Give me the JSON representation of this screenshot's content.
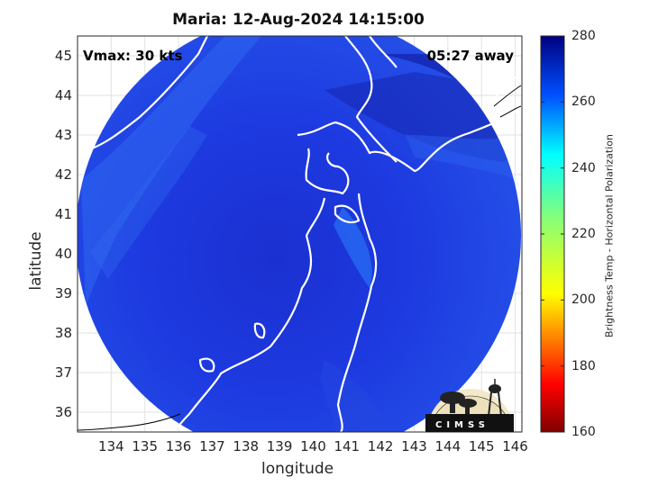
{
  "title": "Maria: 12-Aug-2024 14:15:00",
  "vmax_label": "Vmax: 30 kts",
  "time_away_label": "05:27 away",
  "xlabel": "longitude",
  "ylabel": "latitude",
  "x_ticks": [
    "134",
    "135",
    "136",
    "137",
    "138",
    "139",
    "140",
    "141",
    "142",
    "143",
    "144",
    "145",
    "146"
  ],
  "y_ticks": [
    "45",
    "44",
    "43",
    "42",
    "41",
    "40",
    "39",
    "38",
    "37",
    "36"
  ],
  "colorbar": {
    "label": "Brightness Temp - Horizontal Polarization",
    "ticks": [
      "280",
      "260",
      "240",
      "220",
      "200",
      "180",
      "160"
    ],
    "range": [
      160,
      280
    ]
  },
  "logo": {
    "name": "cimss-logo",
    "text": "CIMSS"
  },
  "colors": {
    "swath_base": "#1f3fe0",
    "swath_dark": "#1426b8",
    "swath_light": "#2e6ef0",
    "coastline": "#ffffff"
  },
  "map_extent": {
    "lon": [
      133,
      146.2
    ],
    "lat": [
      35.5,
      45.5
    ]
  }
}
